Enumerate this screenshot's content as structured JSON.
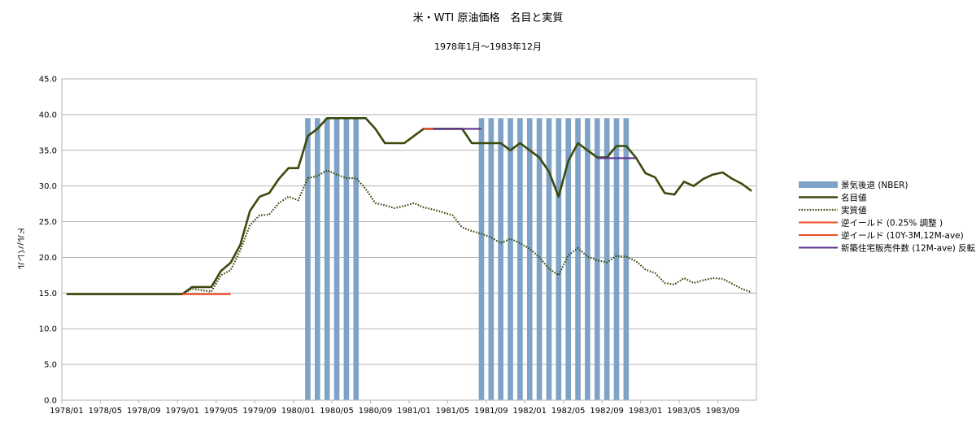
{
  "chart_data": {
    "type": "line",
    "title": "米・WTI 原油価格　名目と実質",
    "subtitle": "1978年1月〜1983年12月",
    "ylabel": "ドル/バレル",
    "xlabel": "",
    "ylim": [
      0,
      45
    ],
    "y_ticks": [
      "0.0",
      "5.0",
      "10.0",
      "15.0",
      "20.0",
      "25.0",
      "30.0",
      "35.0",
      "40.0",
      "45.0"
    ],
    "x_tick_labels": [
      "1978/01",
      "1978/05",
      "1978/09",
      "1979/01",
      "1979/05",
      "1979/09",
      "1980/01",
      "1980/05",
      "1980/09",
      "1981/01",
      "1981/05",
      "1981/09",
      "1982/01",
      "1982/05",
      "1982/09",
      "1983/01",
      "1983/05",
      "1983/09"
    ],
    "x_start": "1978/01",
    "grid": true,
    "legend_position": "right",
    "series": [
      {
        "name": "景気後退 (NBER)",
        "kind": "bar",
        "color": "#7ea3c6",
        "bar_height": 39.5,
        "periods": [
          [
            "1980/02",
            "1980/07"
          ],
          [
            "1981/08",
            "1982/11"
          ]
        ]
      },
      {
        "name": "名目値",
        "kind": "line",
        "color": "#3b4a0c",
        "values": [
          14.85,
          14.85,
          14.85,
          14.85,
          14.85,
          14.85,
          14.85,
          14.85,
          14.85,
          14.85,
          14.85,
          14.85,
          14.85,
          15.85,
          15.85,
          15.85,
          18.1,
          19.25,
          21.75,
          26.5,
          28.5,
          29.0,
          31.0,
          32.5,
          32.5,
          37.0,
          38.0,
          39.5,
          39.5,
          39.5,
          39.5,
          39.5,
          38.0,
          36.0,
          36.0,
          36.0,
          37.0,
          38.0,
          38.0,
          38.0,
          38.0,
          38.0,
          36.0,
          36.0,
          36.0,
          36.0,
          35.0,
          36.0,
          35.0,
          34.0,
          32.0,
          28.5,
          33.5,
          36.0,
          35.0,
          34.0,
          34.0,
          35.6,
          35.6,
          34.0,
          31.8,
          31.2,
          29.0,
          28.8,
          30.6,
          30.0,
          31.0,
          31.6,
          31.9,
          31.0,
          30.3,
          29.3
        ]
      },
      {
        "name": "実質値",
        "kind": "dotted",
        "color": "#3b4a0c",
        "values": [
          14.85,
          14.85,
          14.85,
          14.85,
          14.85,
          14.85,
          14.85,
          14.85,
          14.85,
          14.85,
          14.85,
          14.85,
          14.85,
          15.6,
          15.4,
          15.2,
          17.5,
          18.2,
          21.0,
          24.5,
          25.9,
          26.0,
          27.6,
          28.5,
          28.0,
          31.1,
          31.4,
          32.2,
          31.6,
          31.1,
          31.1,
          29.6,
          27.6,
          27.3,
          26.9,
          27.2,
          27.6,
          27.0,
          26.7,
          26.3,
          25.9,
          24.2,
          23.7,
          23.3,
          22.8,
          22.0,
          22.6,
          22.0,
          21.2,
          20.0,
          18.4,
          17.5,
          20.3,
          21.3,
          20.1,
          19.6,
          19.3,
          20.2,
          20.1,
          19.5,
          18.3,
          17.8,
          16.4,
          16.2,
          17.1,
          16.4,
          16.8,
          17.1,
          17.0,
          16.3,
          15.6,
          15.1
        ]
      },
      {
        "name": "逆イールド (0.25% 調整 )",
        "kind": "segment",
        "color": "#f04c2a",
        "segments": [
          {
            "from": "1979/01",
            "to": "1979/06",
            "value": 14.85
          }
        ]
      },
      {
        "name": "逆イールド (10Y-3M,12M-ave)",
        "kind": "segment",
        "color": "#f04c2a",
        "segments": [
          {
            "from": "1981/02",
            "to": "1981/03",
            "value": 38.0
          }
        ]
      },
      {
        "name": "新築住宅販売件数 (12M-ave) 反転",
        "kind": "segment",
        "color": "#5c2f8e",
        "segments": [
          {
            "from": "1981/03",
            "to": "1981/08",
            "value": 38.0
          },
          {
            "from": "1982/08",
            "to": "1982/12",
            "value": 33.9
          }
        ]
      }
    ]
  }
}
